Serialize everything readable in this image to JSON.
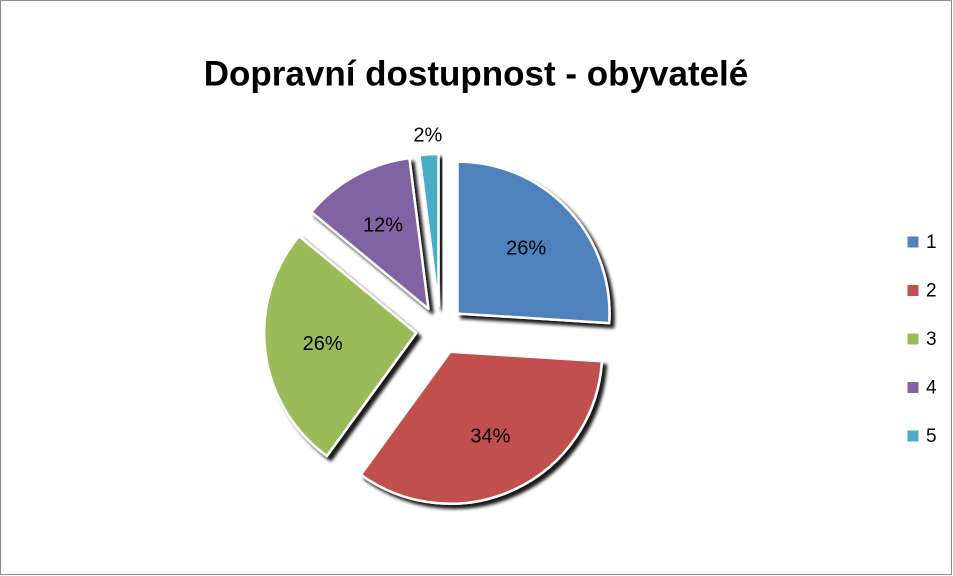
{
  "chart_data": {
    "type": "pie",
    "title": "Dopravní dostupnost - obyvatelé",
    "categories": [
      "1",
      "2",
      "3",
      "4",
      "5"
    ],
    "values": [
      26,
      34,
      26,
      12,
      2
    ],
    "value_labels": [
      "26%",
      "34%",
      "26%",
      "12%",
      "2%"
    ],
    "colors": [
      "#4f81bd",
      "#c0504d",
      "#9bbb59",
      "#8064a2",
      "#4bacc6"
    ],
    "legend": "right"
  }
}
